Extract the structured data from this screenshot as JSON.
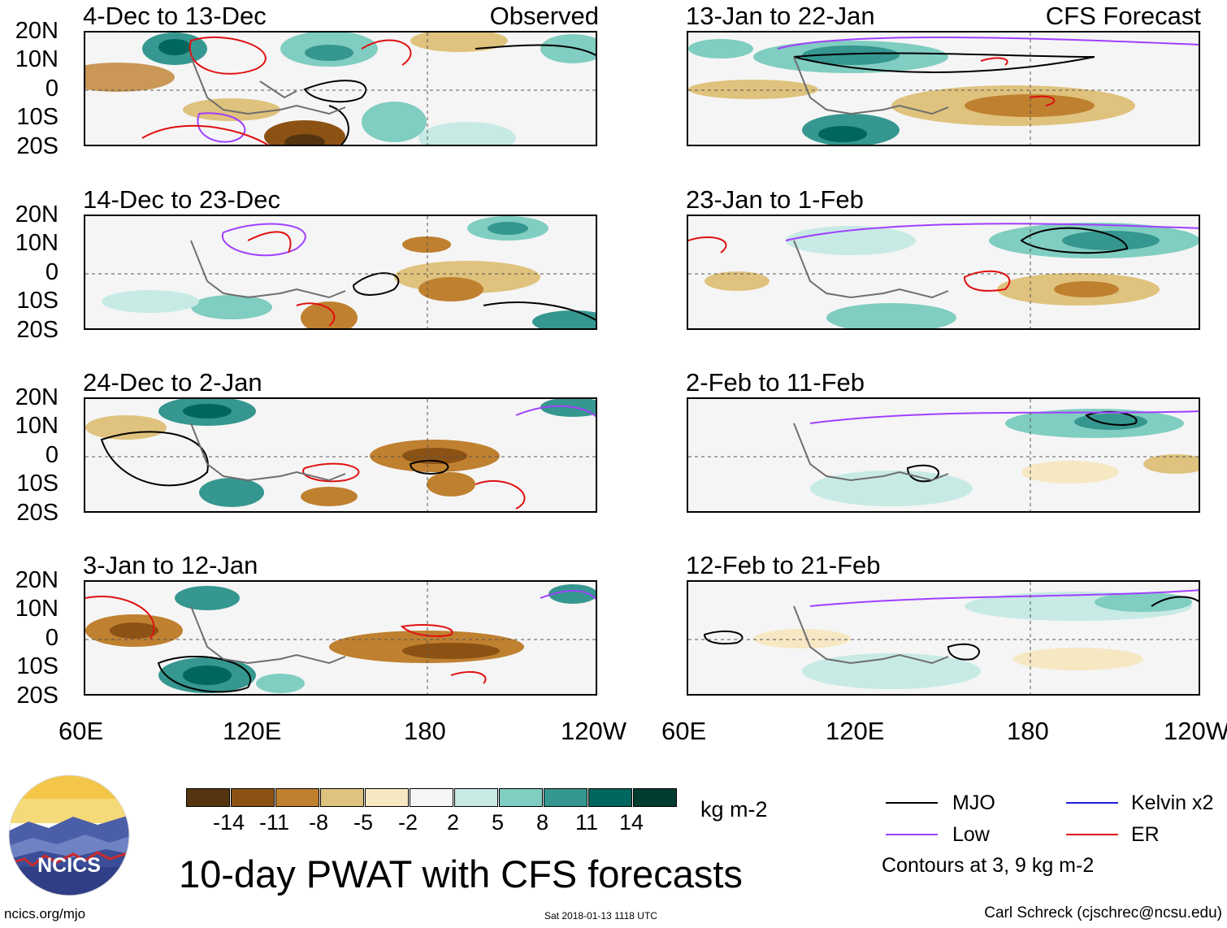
{
  "header": {
    "left_label": "Observed",
    "right_label": "CFS Forecast"
  },
  "lat_labels": [
    "20N",
    "10N",
    "0",
    "10S",
    "20S"
  ],
  "lon_labels": [
    "60E",
    "120E",
    "180",
    "120W"
  ],
  "panels": [
    {
      "title": "4-Dec to 13-Dec"
    },
    {
      "title": "14-Dec to 23-Dec"
    },
    {
      "title": "24-Dec to 2-Jan"
    },
    {
      "title": "3-Jan to 12-Jan"
    },
    {
      "title": "13-Jan to 22-Jan"
    },
    {
      "title": "23-Jan to 1-Feb"
    },
    {
      "title": "2-Feb to 11-Feb"
    },
    {
      "title": "12-Feb to 21-Feb"
    }
  ],
  "colorbar": {
    "labels": [
      "-14",
      "-11",
      "-8",
      "-5",
      "-2",
      "2",
      "5",
      "8",
      "11",
      "14"
    ],
    "colors": [
      "#553510",
      "#8c5214",
      "#bf8030",
      "#dfc27d",
      "#f6e8c3",
      "#f5f5f5",
      "#c7eae5",
      "#80cdc1",
      "#35978f",
      "#01665e",
      "#003c30"
    ],
    "units": "kg m-2"
  },
  "legend": {
    "items": [
      {
        "label": "MJO",
        "color": "#000000"
      },
      {
        "label": "Kelvin x2",
        "color": "#1f1fd6"
      },
      {
        "label": "Low",
        "color": "#a040ff"
      },
      {
        "label": "ER",
        "color": "#e01010"
      }
    ],
    "note": "Contours at 3, 9 kg m-2"
  },
  "footer": {
    "logo_text": "NCICS",
    "title": "10-day PWAT with CFS forecasts",
    "url": "ncics.org/mjo",
    "timestamp": "Sat 2018-01-13 1118 UTC",
    "credit": "Carl Schreck (cjschrec@ncsu.edu)"
  }
}
